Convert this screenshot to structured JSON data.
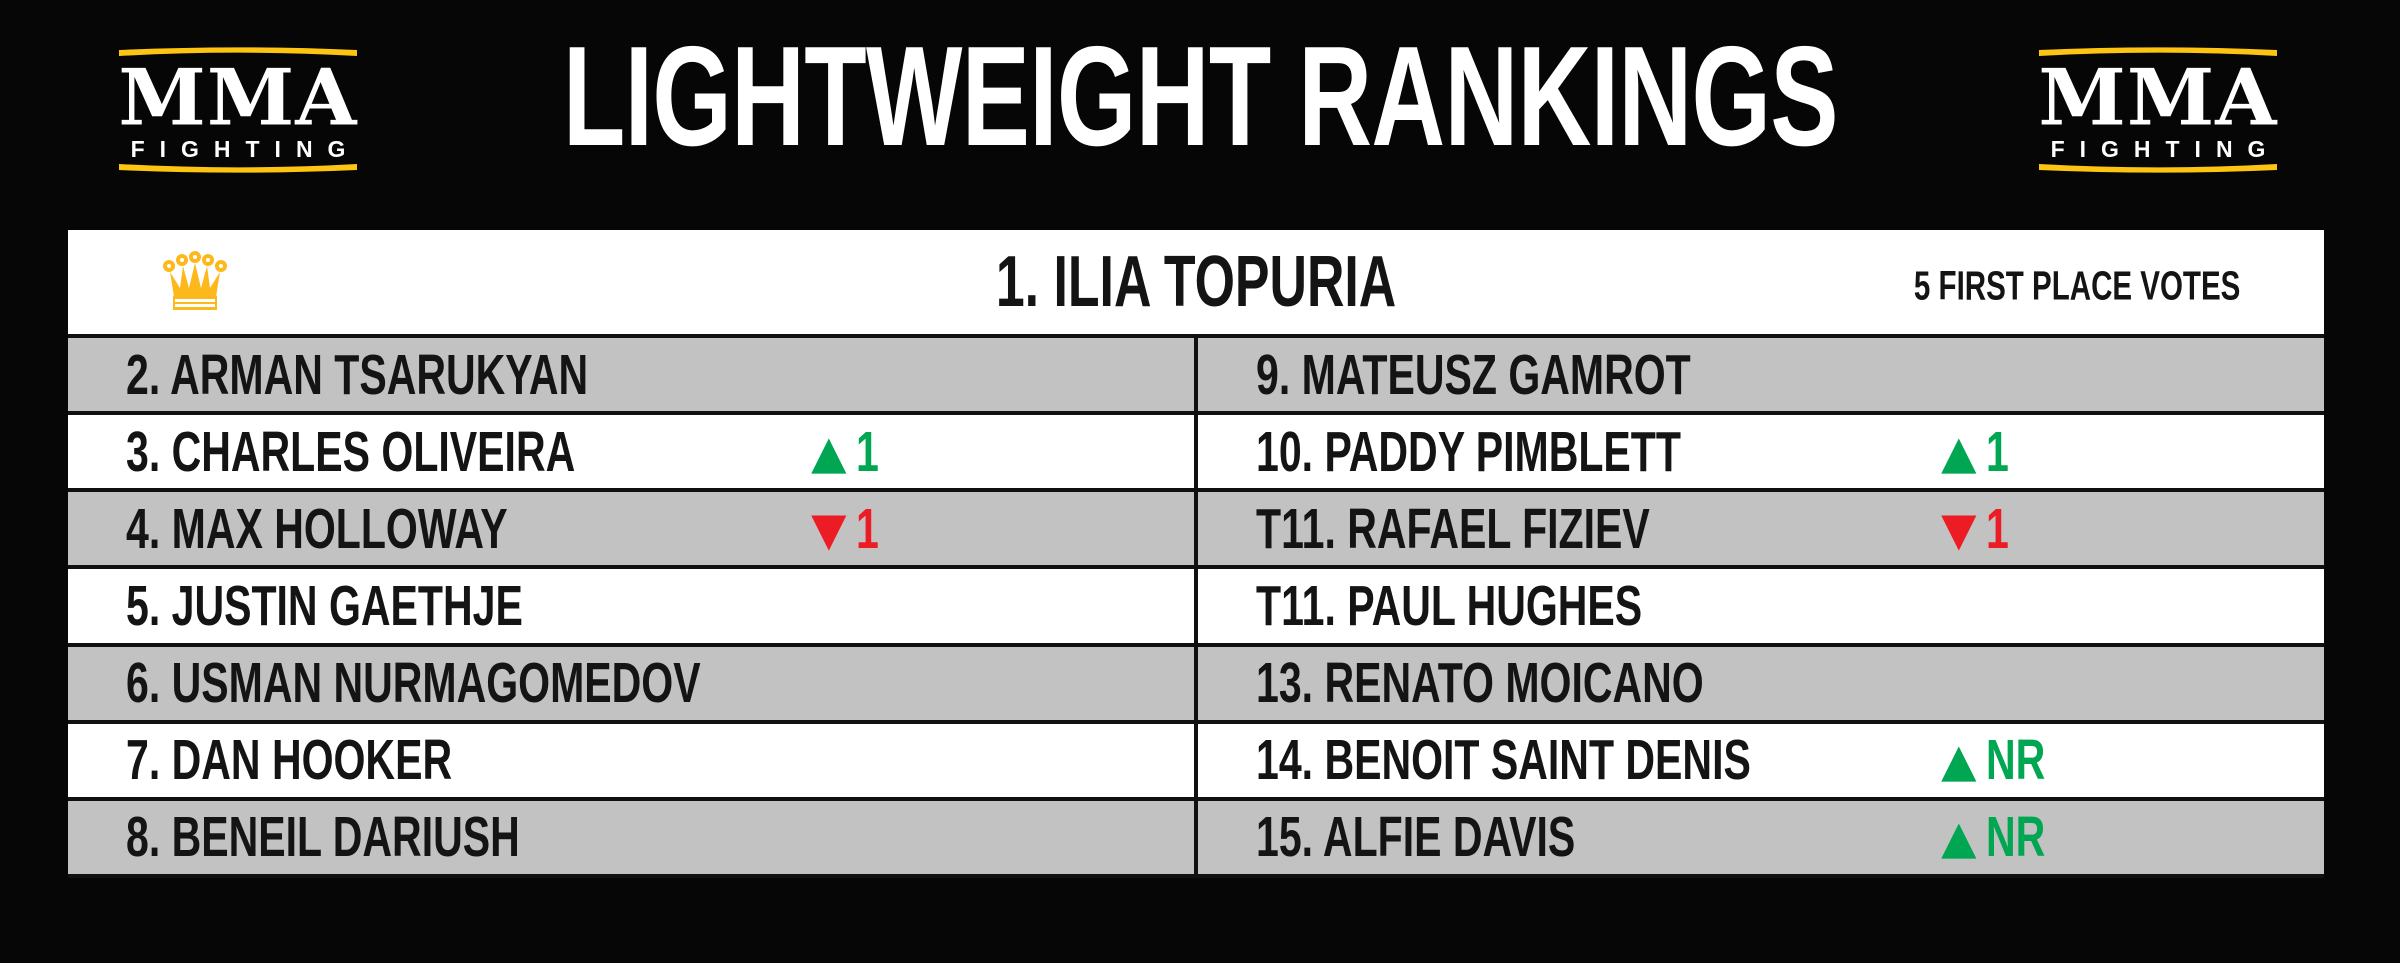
{
  "header": {
    "title": "LIGHTWEIGHT RANKINGS"
  },
  "logo": {
    "word": "MMA",
    "subword": "FIGHTING"
  },
  "champion": {
    "label": "1. ILIA TOPURIA",
    "note": "5 FIRST PLACE VOTES"
  },
  "columns": {
    "left": [
      {
        "label": "2. ARMAN TSARUKYAN",
        "change": null
      },
      {
        "label": "3. CHARLES OLIVEIRA",
        "change": {
          "direction": "up",
          "value": "1"
        }
      },
      {
        "label": "4. MAX HOLLOWAY",
        "change": {
          "direction": "down",
          "value": "1"
        }
      },
      {
        "label": "5. JUSTIN GAETHJE",
        "change": null
      },
      {
        "label": "6. USMAN NURMAGOMEDOV",
        "change": null
      },
      {
        "label": "7. DAN HOOKER",
        "change": null
      },
      {
        "label": "8. BENEIL DARIUSH",
        "change": null
      }
    ],
    "right": [
      {
        "label": "9. MATEUSZ GAMROT",
        "change": null
      },
      {
        "label": "10. PADDY PIMBLETT",
        "change": {
          "direction": "up",
          "value": "1"
        }
      },
      {
        "label": "T11. RAFAEL FIZIEV",
        "change": {
          "direction": "down",
          "value": "1"
        }
      },
      {
        "label": "T11. PAUL HUGHES",
        "change": null
      },
      {
        "label": "13. RENATO MOICANO",
        "change": null
      },
      {
        "label": "14. BENOIT SAINT DENIS",
        "change": {
          "direction": "up",
          "value": "NR"
        }
      },
      {
        "label": "15. ALFIE DAVIS",
        "change": {
          "direction": "up",
          "value": "NR"
        }
      }
    ]
  },
  "icons": {
    "up_arrow": "▲",
    "down_arrow": "▼",
    "crown": "crown-icon"
  },
  "colors": {
    "background": "#060606",
    "panel_white": "#FFFFFF",
    "row_gray": "#C2C2C2",
    "row_border": "#101010",
    "brand_yellow": "#FDC511",
    "crown_gold": "#FDB81B",
    "rank_up_green": "#00A651",
    "rank_down_red": "#EC1C24",
    "text_dark": "#141414",
    "text_light": "#FFFFFF"
  },
  "chart_data": {
    "type": "table",
    "title": "LIGHTWEIGHT RANKINGS",
    "columns": [
      "rank",
      "fighter",
      "change"
    ],
    "rows": [
      [
        "1",
        "ILIA TOPURIA",
        "champion — 5 first place votes"
      ],
      [
        "2",
        "ARMAN TSARUKYAN",
        ""
      ],
      [
        "3",
        "CHARLES OLIVEIRA",
        "up 1"
      ],
      [
        "4",
        "MAX HOLLOWAY",
        "down 1"
      ],
      [
        "5",
        "JUSTIN GAETHJE",
        ""
      ],
      [
        "6",
        "USMAN NURMAGOMEDOV",
        ""
      ],
      [
        "7",
        "DAN HOOKER",
        ""
      ],
      [
        "8",
        "BENEIL DARIUSH",
        ""
      ],
      [
        "9",
        "MATEUSZ GAMROT",
        ""
      ],
      [
        "10",
        "PADDY PIMBLETT",
        "up 1"
      ],
      [
        "T11",
        "RAFAEL FIZIEV",
        "down 1"
      ],
      [
        "T11",
        "PAUL HUGHES",
        ""
      ],
      [
        "13",
        "RENATO MOICANO",
        ""
      ],
      [
        "14",
        "BENOIT SAINT DENIS",
        "up NR"
      ],
      [
        "15",
        "ALFIE DAVIS",
        "up NR"
      ]
    ],
    "layout": "champion header row spans full width; ranks 2-8 in left column, 9-15 in right column; alternating gray/white rows"
  }
}
